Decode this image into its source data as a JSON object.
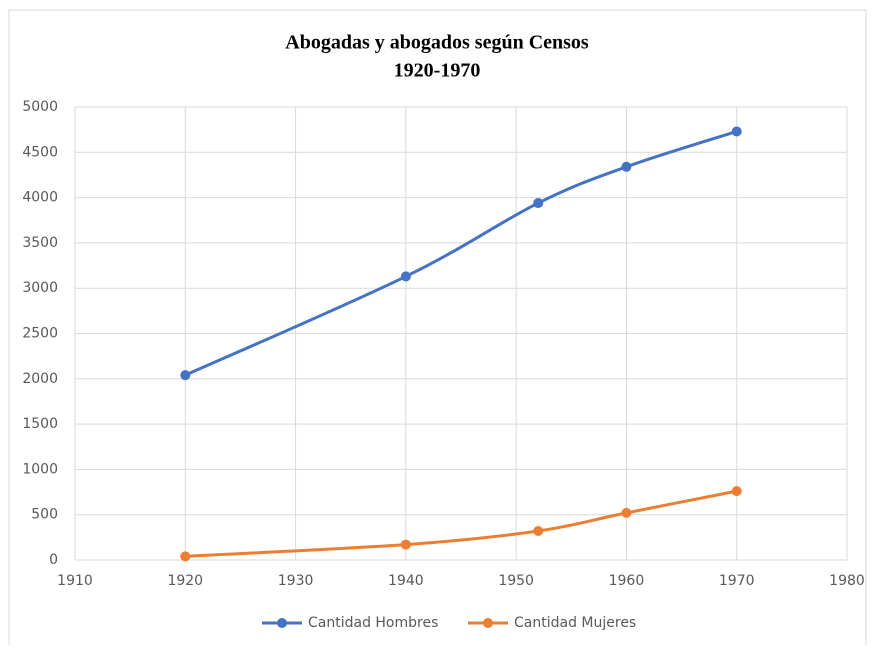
{
  "chart_data": {
    "type": "line",
    "title": "Abogadas y abogados según Censos",
    "subtitle": "1920-1970",
    "x": [
      1920,
      1940,
      1952,
      1960,
      1970
    ],
    "series": [
      {
        "name": "Cantidad Hombres",
        "color": "#4472c4",
        "values": [
          2040,
          3130,
          3940,
          4340,
          4730
        ]
      },
      {
        "name": "Cantidad Mujeres",
        "color": "#ed7d31",
        "values": [
          40,
          170,
          320,
          520,
          760
        ]
      }
    ],
    "xlim": [
      1910,
      1980
    ],
    "xticks": [
      1910,
      1920,
      1930,
      1940,
      1950,
      1960,
      1970,
      1980
    ],
    "ylim": [
      0,
      5000
    ],
    "yticks": [
      0,
      500,
      1000,
      1500,
      2000,
      2500,
      3000,
      3500,
      4000,
      4500,
      5000
    ],
    "grid": true,
    "legend": "bottom"
  }
}
